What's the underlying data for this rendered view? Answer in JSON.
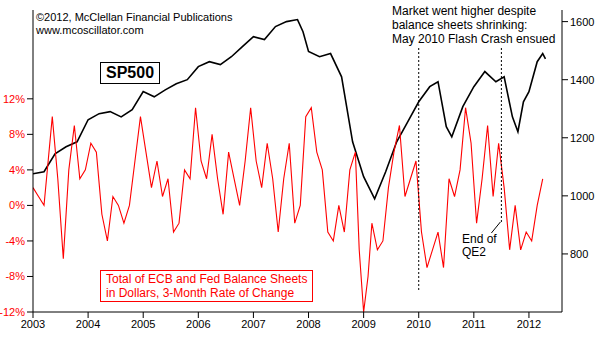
{
  "chart_data": {
    "type": "line",
    "xlim": [
      2003,
      2012.6
    ],
    "xticks": [
      2003,
      2004,
      2005,
      2006,
      2007,
      2008,
      2009,
      2010,
      2011,
      2012
    ],
    "ylim": [
      -12,
      22
    ],
    "yticks": [
      {
        "value": 12,
        "label": "12%"
      },
      {
        "value": 8,
        "label": "8%"
      },
      {
        "value": 4,
        "label": "4%"
      },
      {
        "value": 0,
        "label": "0%"
      },
      {
        "value": -4,
        "label": "-4%"
      },
      {
        "value": -8,
        "label": "-8%"
      },
      {
        "value": -12,
        "label": "-12%"
      }
    ],
    "y2lim": [
      600,
      1640
    ],
    "y2ticks": [
      800,
      1000,
      1200,
      1400,
      1600
    ],
    "grid": false,
    "series": [
      {
        "name": "SP500",
        "color": "#000000",
        "axis": "y2",
        "x": [
          2003.0,
          2003.2,
          2003.4,
          2003.6,
          2003.8,
          2004.0,
          2004.2,
          2004.4,
          2004.6,
          2004.8,
          2005.0,
          2005.2,
          2005.4,
          2005.6,
          2005.8,
          2006.0,
          2006.2,
          2006.4,
          2006.6,
          2006.8,
          2007.0,
          2007.2,
          2007.4,
          2007.6,
          2007.8,
          2007.9,
          2008.0,
          2008.2,
          2008.4,
          2008.6,
          2008.8,
          2009.0,
          2009.2,
          2009.4,
          2009.6,
          2009.8,
          2010.0,
          2010.2,
          2010.35,
          2010.5,
          2010.6,
          2010.8,
          2011.0,
          2011.2,
          2011.4,
          2011.55,
          2011.7,
          2011.8,
          2011.9,
          2012.0,
          2012.15,
          2012.25,
          2012.3
        ],
        "values": [
          1076,
          1083,
          1145,
          1169,
          1186,
          1262,
          1283,
          1290,
          1272,
          1297,
          1359,
          1341,
          1365,
          1386,
          1400,
          1445,
          1462,
          1452,
          1479,
          1514,
          1548,
          1538,
          1583,
          1600,
          1607,
          1565,
          1497,
          1479,
          1490,
          1410,
          1186,
          1066,
          990,
          1083,
          1186,
          1255,
          1324,
          1376,
          1393,
          1238,
          1203,
          1307,
          1376,
          1428,
          1393,
          1410,
          1272,
          1221,
          1324,
          1359,
          1462,
          1490,
          1472
        ]
      },
      {
        "name": "Total of ECB and Fed Balance Sheets\nin Dollars, 3-Month Rate of Change",
        "color": "#ff0000",
        "x": [
          2003.0,
          2003.1,
          2003.2,
          2003.35,
          2003.45,
          2003.55,
          2003.65,
          2003.75,
          2003.85,
          2003.95,
          2004.05,
          2004.15,
          2004.25,
          2004.35,
          2004.45,
          2004.55,
          2004.65,
          2004.75,
          2004.85,
          2004.95,
          2005.05,
          2005.15,
          2005.25,
          2005.35,
          2005.45,
          2005.55,
          2005.65,
          2005.75,
          2005.85,
          2005.95,
          2006.05,
          2006.15,
          2006.25,
          2006.35,
          2006.45,
          2006.55,
          2006.65,
          2006.75,
          2006.85,
          2006.95,
          2007.05,
          2007.15,
          2007.25,
          2007.35,
          2007.45,
          2007.55,
          2007.65,
          2007.75,
          2007.85,
          2007.95,
          2008.05,
          2008.15,
          2008.25,
          2008.35,
          2008.45,
          2008.55,
          2008.65,
          2008.75,
          2008.85,
          2008.92,
          2009.0,
          2009.08,
          2009.15,
          2009.25,
          2009.35,
          2009.45,
          2009.55,
          2009.65,
          2009.75,
          2009.85,
          2009.95,
          2010.05,
          2010.15,
          2010.25,
          2010.35,
          2010.45,
          2010.55,
          2010.65,
          2010.75,
          2010.85,
          2010.95,
          2011.05,
          2011.15,
          2011.25,
          2011.35,
          2011.45,
          2011.55,
          2011.65,
          2011.75,
          2011.85,
          2011.95,
          2012.05,
          2012.15,
          2012.25
        ],
        "values": [
          2,
          1,
          0,
          10,
          3,
          -6,
          4,
          9,
          3,
          4,
          7,
          6,
          -1,
          -4,
          1,
          0,
          -2,
          0,
          5,
          10,
          6,
          2,
          5,
          1,
          3,
          -3,
          -2,
          4,
          3,
          11,
          5,
          3,
          8,
          3,
          -1,
          6,
          3,
          0,
          5,
          11,
          5,
          2,
          7,
          3,
          -3,
          3,
          7,
          -2,
          0,
          10,
          11,
          6,
          4,
          -3,
          -4,
          0,
          -3,
          4,
          6,
          -5,
          -12,
          -8,
          -2,
          -5,
          -4,
          2,
          6,
          9,
          1,
          3,
          5,
          -3,
          -7,
          -5,
          -3,
          -7,
          3,
          1,
          4,
          11,
          7,
          -2,
          3,
          9,
          1,
          7,
          2,
          -5,
          0,
          -5,
          -3,
          -4,
          0,
          3
        ]
      }
    ],
    "annotations": [
      {
        "text": "Market went higher despite\nbalance sheets shrinking:\nMay 2010 Flash Crash ensued",
        "x": 2010.0
      },
      {
        "text": "End of\nQE2",
        "x": 2011.5
      },
      {
        "text": "©2012, McClellan Financial Publications"
      },
      {
        "text": "www.mcoscillator.com"
      }
    ]
  }
}
